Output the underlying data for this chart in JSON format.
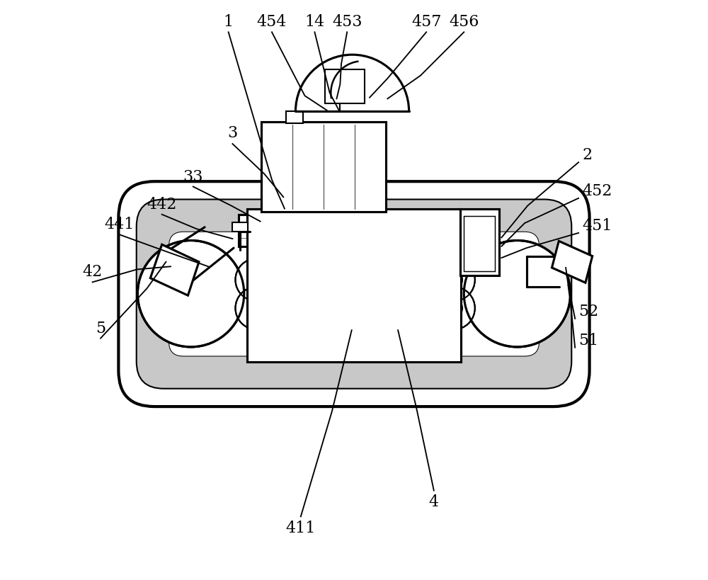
{
  "bg_color": "#ffffff",
  "line_color": "#000000",
  "line_width": 1.5,
  "font_size": 16
}
